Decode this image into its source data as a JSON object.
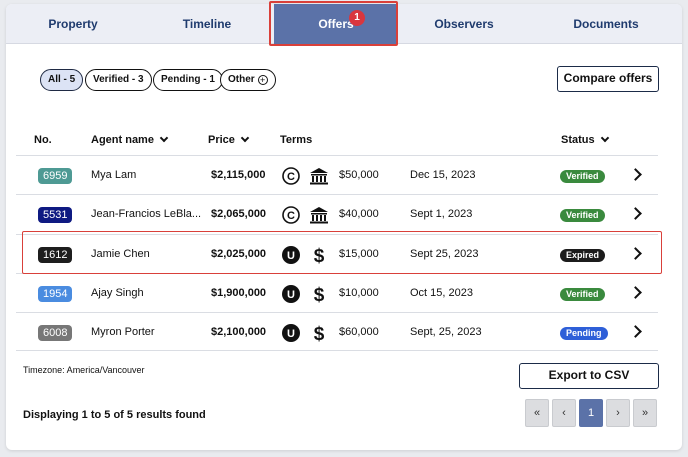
{
  "tabs": [
    {
      "label": "Property",
      "active": false
    },
    {
      "label": "Timeline",
      "active": false
    },
    {
      "label": "Offers",
      "active": true,
      "badge": "1"
    },
    {
      "label": "Observers",
      "active": false
    },
    {
      "label": "Documents",
      "active": false
    }
  ],
  "filters": [
    {
      "label": "All - 5",
      "selected": true
    },
    {
      "label": "Verified - 3",
      "selected": false
    },
    {
      "label": "Pending - 1",
      "selected": false
    },
    {
      "label": "Other",
      "selected": false
    }
  ],
  "compare_button": "Compare offers",
  "columns": {
    "no": "No.",
    "agent": "Agent name",
    "price": "Price",
    "terms": "Terms",
    "status": "Status"
  },
  "offers": [
    {
      "no": "6959",
      "no_color": "#4e9a94",
      "agent": "Mya Lam",
      "price": "$2,115,000",
      "term_code_icon": "c-circle-icon",
      "method_icon": "bank-icon",
      "deposit": "$50,000",
      "date": "Dec 15, 2023",
      "status": "Verified",
      "status_color": "#3a8a3e"
    },
    {
      "no": "5531",
      "no_color": "#0e1a82",
      "agent": "Jean-Francios LeBla...",
      "price": "$2,065,000",
      "term_code_icon": "c-circle-icon",
      "method_icon": "bank-icon",
      "deposit": "$40,000",
      "date": "Sept 1, 2023",
      "status": "Verified",
      "status_color": "#3a8a3e"
    },
    {
      "no": "1612",
      "no_color": "#1e1e1e",
      "agent": "Jamie Chen",
      "price": "$2,025,000",
      "term_code_icon": "u-circle-icon",
      "method_icon": "dollar-icon",
      "deposit": "$15,000",
      "date": "Sept 25, 2023",
      "status": "Expired",
      "status_color": "#1c1c1c"
    },
    {
      "no": "1954",
      "no_color": "#4a8ce0",
      "agent": "Ajay Singh",
      "price": "$1,900,000",
      "term_code_icon": "u-circle-icon",
      "method_icon": "dollar-icon",
      "deposit": "$10,000",
      "date": "Oct 15, 2023",
      "status": "Verified",
      "status_color": "#3a8a3e"
    },
    {
      "no": "6008",
      "no_color": "#777777",
      "agent": "Myron Porter",
      "price": "$2,100,000",
      "term_code_icon": "u-circle-icon",
      "method_icon": "dollar-icon",
      "deposit": "$60,000",
      "date": "Sept, 25, 2023",
      "status": "Pending",
      "status_color": "#2e5fd8"
    }
  ],
  "timezone": "Timezone: America/Vancouver",
  "export_button": "Export to CSV",
  "summary": "Displaying 1 to 5 of 5 results found",
  "pagination": {
    "first": "«",
    "prev": "‹",
    "current": "1",
    "next": "›",
    "last": "»"
  }
}
